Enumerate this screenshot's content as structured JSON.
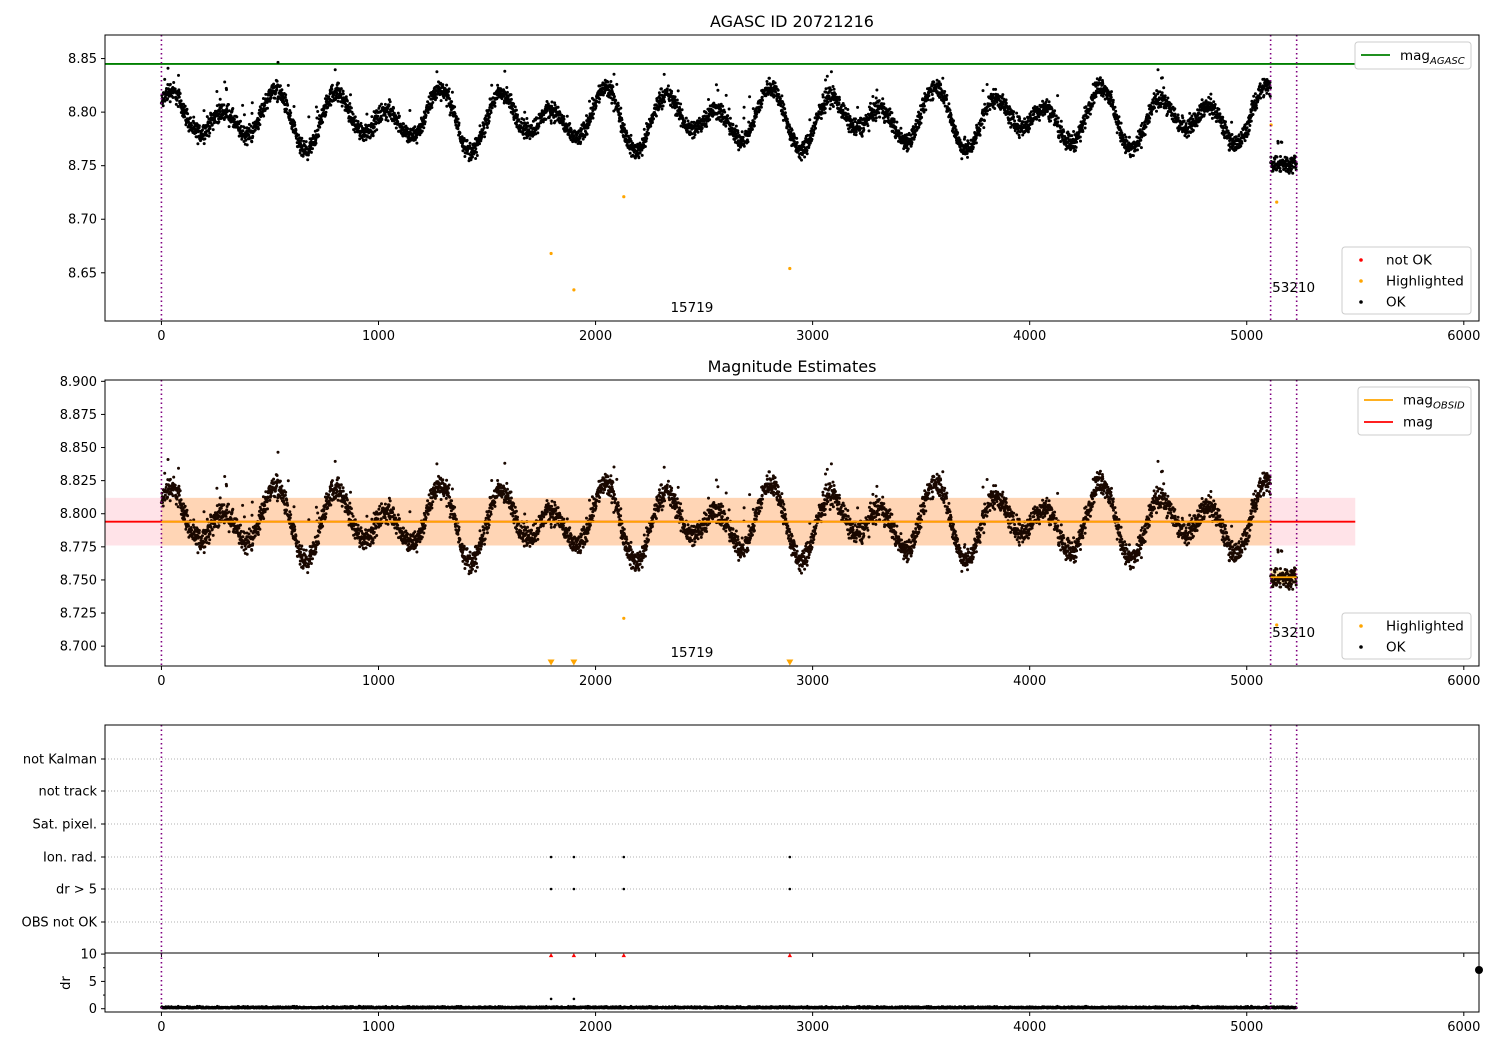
{
  "chart_data": [
    {
      "type": "scatter",
      "title": "AGASC ID 20721216",
      "xlim": [
        -260,
        6070
      ],
      "ylim": [
        8.605,
        8.872
      ],
      "grid": false,
      "x_ticks": [
        "0",
        "1000",
        "2000",
        "3000",
        "4000",
        "5000",
        "6000"
      ],
      "y_ticks": [
        "8.65",
        "8.70",
        "8.75",
        "8.80",
        "8.85"
      ],
      "x_tick_values": [
        0,
        1000,
        2000,
        3000,
        4000,
        5000,
        6000
      ],
      "y_tick_values": [
        8.65,
        8.7,
        8.75,
        8.8,
        8.85
      ],
      "hlines": [
        {
          "name": "mag_AGASC",
          "y": 8.845,
          "color": "#008000"
        }
      ],
      "vlines": [
        0,
        5110,
        5230
      ],
      "observation_labels": [
        {
          "text": "15719",
          "x": 2550
        },
        {
          "text": "53210",
          "x": 5170
        }
      ],
      "series": [
        {
          "name": "not OK",
          "color": "#ff0000",
          "x": [],
          "y": []
        },
        {
          "name": "Highlighted",
          "color": "#ffa500",
          "x": [
            1795,
            1900,
            2130,
            2895,
            5112,
            5138
          ],
          "y": [
            8.668,
            8.634,
            8.721,
            8.654,
            8.788,
            8.716
          ]
        },
        {
          "name": "OK",
          "color": "#000000",
          "description": "about 5200 points fluctuating between 8.75 and 8.84 (mean near 8.795, cyclic pattern, period ~250); points for x 5110-5230 drop to 8.74-8.77"
        }
      ],
      "legend_upper": {
        "label": "mag",
        "sub": "AGASC"
      },
      "legend_lower": [
        "not OK",
        "Highlighted",
        "OK"
      ],
      "legend_placement": "top-right (line) and bottom-right (points)"
    },
    {
      "type": "scatter",
      "title": "Magnitude Estimates",
      "xlim": [
        -260,
        6070
      ],
      "ylim": [
        8.685,
        8.901
      ],
      "grid": false,
      "x_ticks": [
        "0",
        "1000",
        "2000",
        "3000",
        "4000",
        "5000",
        "6000"
      ],
      "y_ticks": [
        "8.700",
        "8.725",
        "8.750",
        "8.775",
        "8.800",
        "8.825",
        "8.850",
        "8.875",
        "8.900"
      ],
      "x_tick_values": [
        0,
        1000,
        2000,
        3000,
        4000,
        5000,
        6000
      ],
      "y_tick_values": [
        8.7,
        8.725,
        8.75,
        8.775,
        8.8,
        8.825,
        8.85,
        8.875,
        8.9
      ],
      "mag": 8.794,
      "mag_band": [
        8.776,
        8.812
      ],
      "mag_obsid": [
        {
          "x_start": 0,
          "x_end": 5110,
          "y": 8.794
        },
        {
          "x_start": 5110,
          "x_end": 5230,
          "y": 8.752
        }
      ],
      "vlines": [
        0,
        5110,
        5230
      ],
      "observation_labels": [
        {
          "text": "15719",
          "x": 2550
        },
        {
          "text": "53210",
          "x": 5170
        }
      ],
      "series": [
        {
          "name": "Highlighted",
          "color": "#ffa500",
          "x": [
            2130,
            5138
          ],
          "y": [
            8.721,
            8.716
          ]
        },
        {
          "name": "Highlighted (below axis)",
          "marker": "triangle-down",
          "color": "#ffa500",
          "x": [
            1795,
            1900,
            2895
          ]
        },
        {
          "name": "OK",
          "color": "#000000",
          "description": "same magnitudes as upper panel"
        }
      ],
      "legend_upper": [
        {
          "label": "mag",
          "sub": "OBSID"
        },
        {
          "label": "mag",
          "sub": ""
        }
      ],
      "legend_lower": [
        "Highlighted",
        "OK"
      ],
      "legend_placement": "top-right (lines) and bottom-right (points)"
    },
    {
      "type": "scatter",
      "title": "",
      "xlim": [
        -260,
        6070
      ],
      "x_ticks": [
        "0",
        "1000",
        "2000",
        "3000",
        "4000",
        "5000",
        "6000"
      ],
      "x_tick_values": [
        0,
        1000,
        2000,
        3000,
        4000,
        5000,
        6000
      ],
      "flag_rows": [
        "not Kalman",
        "not track",
        "Sat. pixel.",
        "Ion. rad.",
        "dr > 5",
        "OBS not OK"
      ],
      "flag_points": {
        "Ion. rad.": [
          1795,
          1900,
          2130,
          2895
        ],
        "dr > 5": [
          1795,
          1900,
          2130,
          2895
        ]
      },
      "dr": {
        "ylabel": "dr",
        "y_ticks": [
          "0",
          "5",
          "10"
        ],
        "y_tick_values": [
          0,
          5,
          10
        ],
        "ylim": [
          -0.6,
          10.2
        ],
        "clipped_markers_x": [
          1795,
          1900,
          2130,
          2895
        ],
        "extra_points": [
          {
            "x": 1795,
            "y": 1.8
          },
          {
            "x": 1900,
            "y": 1.8
          }
        ],
        "description": "dr values mostly 0-0.8 for x from 0 to 5230"
      },
      "vlines": [
        0,
        5110,
        5230
      ]
    }
  ]
}
